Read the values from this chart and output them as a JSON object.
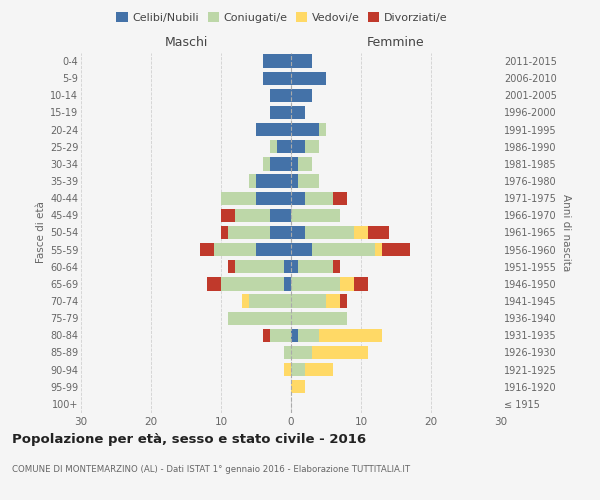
{
  "age_groups": [
    "100+",
    "95-99",
    "90-94",
    "85-89",
    "80-84",
    "75-79",
    "70-74",
    "65-69",
    "60-64",
    "55-59",
    "50-54",
    "45-49",
    "40-44",
    "35-39",
    "30-34",
    "25-29",
    "20-24",
    "15-19",
    "10-14",
    "5-9",
    "0-4"
  ],
  "birth_years": [
    "≤ 1915",
    "1916-1920",
    "1921-1925",
    "1926-1930",
    "1931-1935",
    "1936-1940",
    "1941-1945",
    "1946-1950",
    "1951-1955",
    "1956-1960",
    "1961-1965",
    "1966-1970",
    "1971-1975",
    "1976-1980",
    "1981-1985",
    "1986-1990",
    "1991-1995",
    "1996-2000",
    "2001-2005",
    "2006-2010",
    "2011-2015"
  ],
  "males": {
    "celibi": [
      0,
      0,
      0,
      0,
      0,
      0,
      0,
      1,
      1,
      5,
      3,
      3,
      5,
      5,
      3,
      2,
      5,
      3,
      3,
      4,
      4
    ],
    "coniugati": [
      0,
      0,
      0,
      1,
      3,
      9,
      6,
      9,
      7,
      6,
      6,
      5,
      5,
      1,
      1,
      1,
      0,
      0,
      0,
      0,
      0
    ],
    "vedovi": [
      0,
      0,
      1,
      0,
      0,
      0,
      1,
      0,
      0,
      0,
      0,
      0,
      0,
      0,
      0,
      0,
      0,
      0,
      0,
      0,
      0
    ],
    "divorziati": [
      0,
      0,
      0,
      0,
      1,
      0,
      0,
      2,
      1,
      2,
      1,
      2,
      0,
      0,
      0,
      0,
      0,
      0,
      0,
      0,
      0
    ]
  },
  "females": {
    "nubili": [
      0,
      0,
      0,
      0,
      1,
      0,
      0,
      0,
      1,
      3,
      2,
      0,
      2,
      1,
      1,
      2,
      4,
      2,
      3,
      5,
      3
    ],
    "coniugate": [
      0,
      0,
      2,
      3,
      3,
      8,
      5,
      7,
      5,
      9,
      7,
      7,
      4,
      3,
      2,
      2,
      1,
      0,
      0,
      0,
      0
    ],
    "vedove": [
      0,
      2,
      4,
      8,
      9,
      0,
      2,
      2,
      0,
      1,
      2,
      0,
      0,
      0,
      0,
      0,
      0,
      0,
      0,
      0,
      0
    ],
    "divorziate": [
      0,
      0,
      0,
      0,
      0,
      0,
      1,
      2,
      1,
      4,
      3,
      0,
      2,
      0,
      0,
      0,
      0,
      0,
      0,
      0,
      0
    ]
  },
  "colors": {
    "celibi": "#4472a8",
    "coniugati": "#bdd7a8",
    "vedovi": "#ffd966",
    "divorziati": "#c0392b"
  },
  "title": "Popolazione per età, sesso e stato civile - 2016",
  "subtitle": "COMUNE DI MONTEMARZINO (AL) - Dati ISTAT 1° gennaio 2016 - Elaborazione TUTTITALIA.IT",
  "xlim": 30,
  "background_color": "#f5f5f5",
  "grid_color": "#cccccc"
}
